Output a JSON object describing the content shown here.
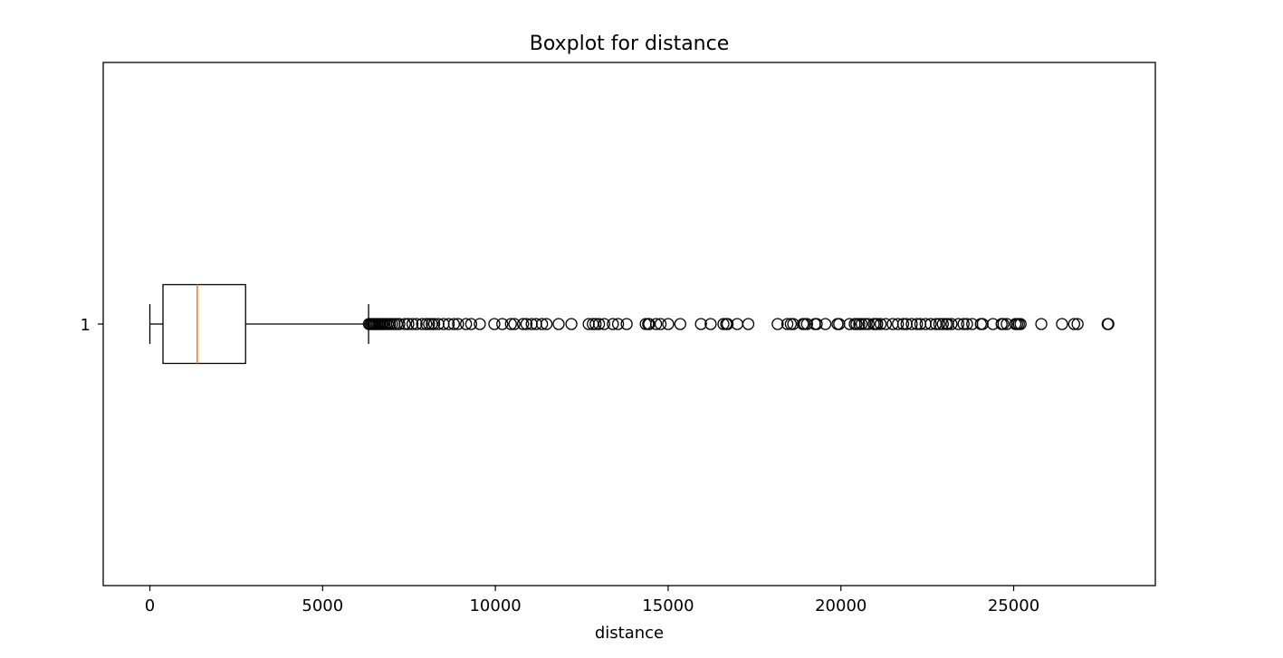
{
  "chart_data": {
    "type": "boxplot",
    "orientation": "horizontal",
    "title": "Boxplot for distance",
    "xlabel": "distance",
    "ylabel": "",
    "xlim": [
      -1350,
      29100
    ],
    "xticks": [
      0,
      5000,
      10000,
      15000,
      20000,
      25000
    ],
    "xtick_labels": [
      "0",
      "5000",
      "10000",
      "15000",
      "20000",
      "25000"
    ],
    "yticks": [
      1
    ],
    "ytick_labels": [
      "1"
    ],
    "grid": false,
    "box": {
      "category": "1",
      "whisker_low": 0,
      "q1": 380,
      "median": 1370,
      "q3": 2770,
      "whisker_high": 6330
    },
    "outliers": [
      6340,
      6380,
      6420,
      6460,
      6500,
      6540,
      6580,
      6620,
      6660,
      6700,
      6740,
      6790,
      6840,
      6890,
      6950,
      7010,
      7080,
      7150,
      7220,
      7380,
      7480,
      7600,
      7720,
      7880,
      8000,
      8080,
      8160,
      8230,
      8350,
      8500,
      8650,
      8800,
      8920,
      9150,
      9300,
      9550,
      9970,
      10200,
      10450,
      10550,
      10800,
      10900,
      11050,
      11180,
      11350,
      11480,
      11830,
      12200,
      12700,
      12820,
      12900,
      13000,
      13150,
      13400,
      13550,
      13800,
      14350,
      14420,
      14450,
      14650,
      14780,
      15000,
      15350,
      15950,
      16230,
      16600,
      16680,
      16720,
      17000,
      17320,
      18170,
      18450,
      18550,
      18620,
      18900,
      18950,
      19020,
      19250,
      19300,
      19550,
      19900,
      19950,
      20250,
      20400,
      20450,
      20530,
      20600,
      20700,
      20800,
      20950,
      21000,
      21050,
      21150,
      21300,
      21500,
      21650,
      21800,
      21900,
      22050,
      22200,
      22300,
      22450,
      22600,
      22750,
      22850,
      22950,
      23050,
      23100,
      23200,
      23400,
      23550,
      23650,
      23800,
      24050,
      24100,
      24400,
      24650,
      24700,
      24800,
      25050,
      25100,
      25150,
      25200,
      25800,
      26400,
      26750,
      26850,
      27720,
      27740
    ],
    "colors": {
      "box": "#000000",
      "median": "#ff7f0e",
      "whisker": "#000000",
      "outlier_edge": "#000000",
      "background": "#ffffff"
    }
  }
}
